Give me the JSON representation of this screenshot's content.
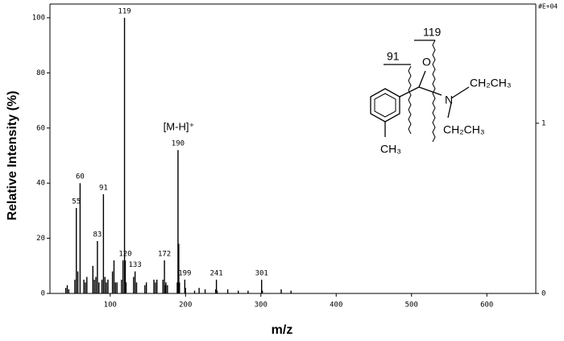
{
  "chart_data": {
    "type": "stick",
    "xlabel": "m/z",
    "ylabel": "Relative Intensity (%)",
    "annotation": "[M-H]⁺",
    "y2label": "#E+04",
    "xlim": [
      20,
      665
    ],
    "xticks": [
      100,
      200,
      300,
      400,
      500,
      600
    ],
    "ylim": [
      0,
      100
    ],
    "yticks": [
      0,
      20,
      40,
      60,
      80,
      100
    ],
    "y2lim": [
      0,
      1.62
    ],
    "y2ticks": [
      0,
      1
    ],
    "color": "#000000",
    "series": [
      {
        "x": [
          55,
          60,
          83,
          91,
          119,
          120,
          133,
          172,
          190,
          199,
          241,
          301
        ],
        "values": [
          31,
          40,
          19,
          36,
          100,
          12,
          8,
          12,
          52,
          5,
          5,
          5
        ]
      },
      {
        "x": [
          41,
          43,
          45,
          53,
          57,
          65,
          67,
          69,
          77,
          79,
          81,
          85,
          89,
          93,
          95,
          97,
          103,
          105,
          107,
          109,
          115,
          117,
          121,
          131,
          135,
          146,
          148,
          158,
          160,
          162,
          170,
          173,
          174,
          176,
          189,
          191,
          192,
          200,
          212,
          218,
          226,
          240,
          242,
          256,
          270,
          283,
          302,
          327,
          340
        ],
        "values": [
          2,
          3,
          1.5,
          5,
          8,
          5,
          4,
          6,
          10,
          5,
          6,
          4,
          5,
          6,
          4,
          5,
          8,
          12,
          4,
          4,
          5,
          12,
          4,
          6,
          4,
          3,
          4,
          5,
          4,
          5,
          5,
          3,
          4,
          3,
          4,
          18,
          4,
          2,
          1,
          2,
          1.5,
          1.5,
          1,
          1.5,
          1,
          1,
          1,
          1.5,
          1
        ]
      }
    ]
  },
  "structure": {
    "labels": [
      "119",
      "91",
      "O",
      "N",
      "CH₂CH₃",
      "CH₂CH₃",
      "CH₃"
    ]
  }
}
